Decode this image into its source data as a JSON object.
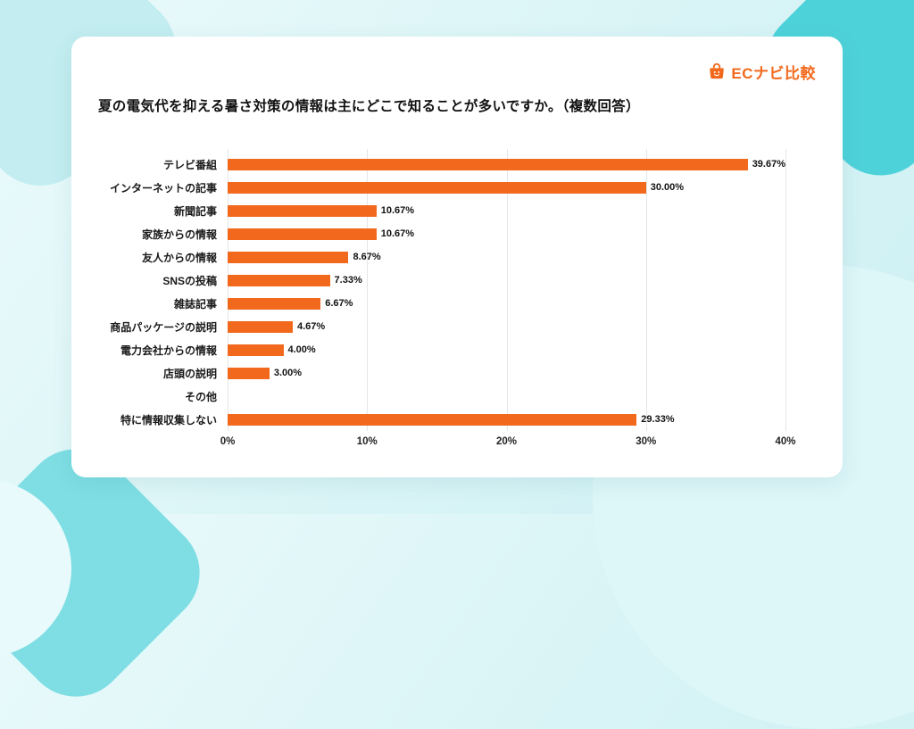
{
  "logo": {
    "text": "ECナビ比較",
    "accent_color": "#f2691d"
  },
  "card": {
    "title": "夏の電気代を抑える暑さ対策の情報は主にどこで知ることが多いですか。（複数回答）"
  },
  "chart_data": {
    "type": "bar",
    "orientation": "horizontal",
    "title": "夏の電気代を抑える暑さ対策の情報は主にどこで知ることが多いですか。（複数回答）",
    "categories": [
      "テレビ番組",
      "インターネットの記事",
      "新聞記事",
      "家族からの情報",
      "友人からの情報",
      "SNSの投稿",
      "雑誌記事",
      "商品パッケージの説明",
      "電力会社からの情報",
      "店頭の説明",
      "その他",
      "特に情報収集しない"
    ],
    "values": [
      39.67,
      30.0,
      10.67,
      10.67,
      8.67,
      7.33,
      6.67,
      4.67,
      4.0,
      3.0,
      0,
      29.33
    ],
    "value_labels": [
      "39.67%",
      "30.00%",
      "10.67%",
      "10.67%",
      "8.67%",
      "7.33%",
      "6.67%",
      "4.67%",
      "4.00%",
      "3.00%",
      "",
      "29.33%"
    ],
    "xlim": [
      0,
      40
    ],
    "x_ticks": [
      "0%",
      "10%",
      "20%",
      "30%",
      "40%"
    ],
    "bar_color": "#f2691d",
    "grid": true,
    "legend": false
  }
}
